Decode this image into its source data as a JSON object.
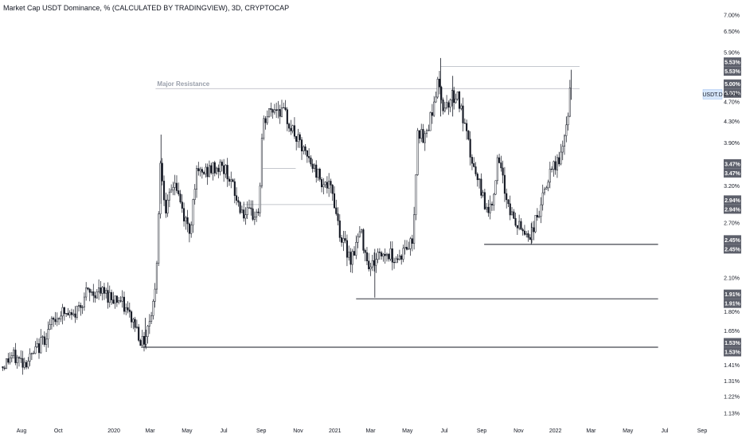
{
  "chart_data": {
    "type": "candlestick",
    "title": "Market Cap USDT Dominance, % (CALCULATED BY TRADINGVIEW), 3D, CRYPTOCAP",
    "y_scale": "log",
    "ylim": [
      1.11,
      7.05
    ],
    "y_ticks": [
      "7.00%",
      "6.50%",
      "5.90%",
      "4.70%",
      "4.30%",
      "3.90%",
      "3.20%",
      "2.70%",
      "2.10%",
      "1.80%",
      "1.65%",
      "1.41%",
      "1.31%",
      "1.22%",
      "1.13%"
    ],
    "x_ticks": [
      {
        "label": "Aug",
        "x": "2019-08-01"
      },
      {
        "label": "Oct",
        "x": "2019-10-01"
      },
      {
        "label": "2020",
        "x": "2020-01-01"
      },
      {
        "label": "Mar",
        "x": "2020-03-01"
      },
      {
        "label": "May",
        "x": "2020-05-01"
      },
      {
        "label": "Jul",
        "x": "2020-07-01"
      },
      {
        "label": "Sep",
        "x": "2020-09-01"
      },
      {
        "label": "Nov",
        "x": "2020-11-01"
      },
      {
        "label": "2021",
        "x": "2021-01-01"
      },
      {
        "label": "Mar",
        "x": "2021-03-01"
      },
      {
        "label": "May",
        "x": "2021-05-01"
      },
      {
        "label": "Jul",
        "x": "2021-07-01"
      },
      {
        "label": "Sep",
        "x": "2021-09-01"
      },
      {
        "label": "Nov",
        "x": "2021-11-01"
      },
      {
        "label": "2022",
        "x": "2022-01-01"
      },
      {
        "label": "Mar",
        "x": "2022-03-01"
      },
      {
        "label": "May",
        "x": "2022-05-01"
      },
      {
        "label": "Jul",
        "x": "2022-07-01"
      },
      {
        "label": "Sep",
        "x": "2022-09-01"
      }
    ],
    "anchors": [
      [
        "2019-07-01",
        1.4
      ],
      [
        "2019-07-15",
        1.47
      ],
      [
        "2019-08-05",
        1.43
      ],
      [
        "2019-08-20",
        1.47
      ],
      [
        "2019-09-05",
        1.58
      ],
      [
        "2019-09-20",
        1.7
      ],
      [
        "2019-10-05",
        1.8
      ],
      [
        "2019-10-25",
        1.75
      ],
      [
        "2019-11-15",
        1.95
      ],
      [
        "2019-12-05",
        1.97
      ],
      [
        "2019-12-20",
        1.95
      ],
      [
        "2020-01-10",
        1.9
      ],
      [
        "2020-02-05",
        1.7
      ],
      [
        "2020-02-18",
        1.55
      ],
      [
        "2020-03-02",
        1.78
      ],
      [
        "2020-03-10",
        2.0
      ],
      [
        "2020-03-18",
        3.55
      ],
      [
        "2020-03-28",
        2.85
      ],
      [
        "2020-04-10",
        3.3
      ],
      [
        "2020-04-25",
        2.8
      ],
      [
        "2020-05-06",
        2.6
      ],
      [
        "2020-05-15",
        3.35
      ],
      [
        "2020-05-28",
        3.4
      ],
      [
        "2020-06-10",
        3.45
      ],
      [
        "2020-06-25",
        3.5
      ],
      [
        "2020-07-08",
        3.4
      ],
      [
        "2020-07-22",
        3.0
      ],
      [
        "2020-08-05",
        2.8
      ],
      [
        "2020-08-18",
        2.8
      ],
      [
        "2020-08-28",
        2.85
      ],
      [
        "2020-09-03",
        4.2
      ],
      [
        "2020-09-15",
        4.5
      ],
      [
        "2020-09-28",
        4.6
      ],
      [
        "2020-10-12",
        4.4
      ],
      [
        "2020-10-28",
        4.0
      ],
      [
        "2020-11-12",
        3.7
      ],
      [
        "2020-11-25",
        3.5
      ],
      [
        "2020-12-10",
        3.3
      ],
      [
        "2020-12-28",
        3.1
      ],
      [
        "2021-01-12",
        2.5
      ],
      [
        "2021-01-28",
        2.3
      ],
      [
        "2021-02-12",
        2.6
      ],
      [
        "2021-02-28",
        2.2
      ],
      [
        "2021-03-15",
        2.35
      ],
      [
        "2021-03-30",
        2.35
      ],
      [
        "2021-04-15",
        2.3
      ],
      [
        "2021-04-28",
        2.4
      ],
      [
        "2021-05-10",
        2.5
      ],
      [
        "2021-05-18",
        4.2
      ],
      [
        "2021-05-28",
        3.9
      ],
      [
        "2021-06-10",
        4.5
      ],
      [
        "2021-06-20",
        5.1
      ],
      [
        "2021-06-30",
        4.6
      ],
      [
        "2021-07-12",
        4.8
      ],
      [
        "2021-07-22",
        4.9
      ],
      [
        "2021-08-05",
        4.1
      ],
      [
        "2021-08-20",
        3.4
      ],
      [
        "2021-09-05",
        3.0
      ],
      [
        "2021-09-15",
        2.85
      ],
      [
        "2021-09-28",
        3.6
      ],
      [
        "2021-10-10",
        3.1
      ],
      [
        "2021-10-25",
        2.7
      ],
      [
        "2021-11-10",
        2.6
      ],
      [
        "2021-11-20",
        2.55
      ],
      [
        "2021-12-05",
        2.85
      ],
      [
        "2021-12-20",
        3.3
      ],
      [
        "2022-01-05",
        3.6
      ],
      [
        "2022-01-15",
        3.8
      ],
      [
        "2022-01-25",
        4.9
      ]
    ],
    "spikes": [
      {
        "x": "2020-03-19",
        "high": 4.05,
        "low": 2.95
      },
      {
        "x": "2021-06-25",
        "high": 5.75,
        "low": 4.4
      },
      {
        "x": "2021-07-15",
        "high": 5.3,
        "low": 4.4
      },
      {
        "x": "2022-01-27",
        "high": 5.45,
        "low": 4.75
      },
      {
        "x": "2021-03-08",
        "high": 2.4,
        "low": 1.92
      },
      {
        "x": "2020-02-22",
        "high": 1.75,
        "low": 1.53
      },
      {
        "x": "2021-11-22",
        "high": 2.7,
        "low": 2.45
      }
    ],
    "levels": [
      {
        "label1": "5.53%",
        "label2": "5.53%",
        "value": 5.53,
        "from": "2021-06-25",
        "to": "2022-02-10"
      },
      {
        "label1": "5.00%",
        "label2": "5.00%",
        "value": 5.0,
        "from": "2020-03-10",
        "to": "2022-02-10",
        "note": "Major Resistance"
      },
      {
        "label1": "3.47%",
        "label2": "3.47%",
        "value": 3.47,
        "from": "2020-09-01",
        "to": "2020-10-28"
      },
      {
        "label1": "2.94%",
        "label2": "2.94%",
        "value": 2.94,
        "from": "2020-08-01",
        "to": "2020-12-31"
      },
      {
        "label1": "2.45%",
        "label2": "2.45%",
        "value": 2.45,
        "from": "2021-09-05",
        "to": "2022-06-20"
      },
      {
        "label1": "1.91%",
        "label2": "1.91%",
        "value": 1.91,
        "from": "2021-02-05",
        "to": "2022-06-20"
      },
      {
        "label1": "1.53%",
        "label2": "1.53%",
        "value": 1.53,
        "from": "2020-02-15",
        "to": "2022-06-20"
      }
    ],
    "current": {
      "symbol": "USDT.D",
      "value": 4.87,
      "label": "4.87%"
    }
  }
}
